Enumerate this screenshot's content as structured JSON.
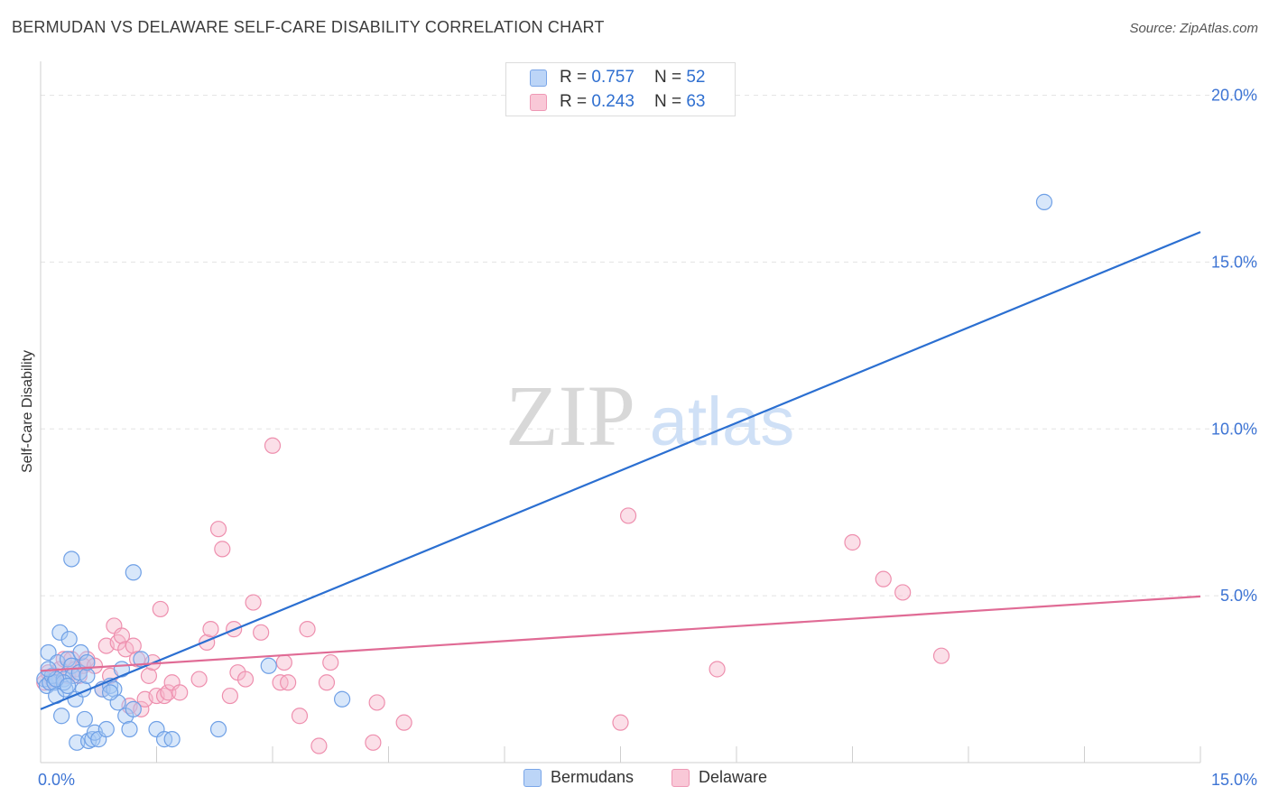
{
  "title": "BERMUDAN VS DELAWARE SELF-CARE DISABILITY CORRELATION CHART",
  "source": "Source: ZipAtlas.com",
  "watermark": {
    "zip": "ZIP",
    "atlas": "atlas"
  },
  "legend_stats": [
    {
      "r_label": "R =",
      "r_value": "0.757",
      "n_label": "N =",
      "n_value": "52"
    },
    {
      "r_label": "R =",
      "r_value": "0.243",
      "n_label": "N =",
      "n_value": "63"
    }
  ],
  "colors": {
    "blue_fill": "#a9c9f5",
    "blue_stroke": "#6fa0e6",
    "blue_line": "#2b6fd1",
    "pink_fill": "#f6b9cc",
    "pink_stroke": "#ee8fae",
    "pink_line": "#e06b95",
    "tick_text": "#3d74d4",
    "grid": "#e3e3e3"
  },
  "chart_data": {
    "type": "scatter",
    "title": "BERMUDAN VS DELAWARE SELF-CARE DISABILITY CORRELATION CHART",
    "xlabel": "",
    "ylabel": "Self-Care Disability",
    "xlim": [
      0,
      15
    ],
    "ylim": [
      0,
      20.8
    ],
    "x_tick_labels": [
      {
        "value": 0,
        "label": "0.0%"
      },
      {
        "value": 15,
        "label": "15.0%"
      }
    ],
    "y_tick_labels": [
      {
        "value": 5,
        "label": "5.0%"
      },
      {
        "value": 10,
        "label": "10.0%"
      },
      {
        "value": 15,
        "label": "15.0%"
      },
      {
        "value": 20,
        "label": "20.0%"
      }
    ],
    "legend": [
      "Bermudans",
      "Delaware"
    ],
    "series": [
      {
        "name": "Bermudans",
        "color": "#a9c9f5",
        "R": 0.757,
        "N": 52,
        "trend": {
          "x": [
            0,
            15
          ],
          "y": [
            1.6,
            15.9
          ]
        },
        "points": [
          [
            0.05,
            2.5
          ],
          [
            0.08,
            2.3
          ],
          [
            0.1,
            3.3
          ],
          [
            0.12,
            2.4
          ],
          [
            0.15,
            2.6
          ],
          [
            0.18,
            2.4
          ],
          [
            0.2,
            2.0
          ],
          [
            0.22,
            3.0
          ],
          [
            0.25,
            3.9
          ],
          [
            0.27,
            1.4
          ],
          [
            0.3,
            2.5
          ],
          [
            0.32,
            2.2
          ],
          [
            0.35,
            3.1
          ],
          [
            0.37,
            3.7
          ],
          [
            0.4,
            2.9
          ],
          [
            0.42,
            2.6
          ],
          [
            0.45,
            1.9
          ],
          [
            0.47,
            0.6
          ],
          [
            0.5,
            2.7
          ],
          [
            0.52,
            3.3
          ],
          [
            0.55,
            2.2
          ],
          [
            0.57,
            1.3
          ],
          [
            0.6,
            2.6
          ],
          [
            0.62,
            0.65
          ],
          [
            0.67,
            0.7
          ],
          [
            0.7,
            0.9
          ],
          [
            0.75,
            0.7
          ],
          [
            0.8,
            2.2
          ],
          [
            0.85,
            1.0
          ],
          [
            0.9,
            2.3
          ],
          [
            0.95,
            2.2
          ],
          [
            1.0,
            1.8
          ],
          [
            1.05,
            2.8
          ],
          [
            1.1,
            1.4
          ],
          [
            1.15,
            1.0
          ],
          [
            1.2,
            1.6
          ],
          [
            1.3,
            3.1
          ],
          [
            1.5,
            1.0
          ],
          [
            1.6,
            0.7
          ],
          [
            1.7,
            0.7
          ],
          [
            2.3,
            1.0
          ],
          [
            2.95,
            2.9
          ],
          [
            3.9,
            1.9
          ],
          [
            0.4,
            6.1
          ],
          [
            1.2,
            5.7
          ],
          [
            12.98,
            16.8
          ],
          [
            0.3,
            2.4
          ],
          [
            0.6,
            3.0
          ],
          [
            0.2,
            2.5
          ],
          [
            0.35,
            2.3
          ],
          [
            0.1,
            2.8
          ],
          [
            0.9,
            2.1
          ]
        ]
      },
      {
        "name": "Delaware",
        "color": "#f6b9cc",
        "R": 0.243,
        "N": 63,
        "trend": {
          "x": [
            0,
            15
          ],
          "y": [
            2.75,
            4.98
          ]
        },
        "points": [
          [
            0.05,
            2.4
          ],
          [
            0.1,
            2.7
          ],
          [
            0.15,
            2.5
          ],
          [
            0.2,
            2.6
          ],
          [
            0.25,
            2.8
          ],
          [
            0.3,
            3.1
          ],
          [
            0.35,
            2.6
          ],
          [
            0.4,
            3.1
          ],
          [
            0.45,
            2.8
          ],
          [
            0.5,
            2.6
          ],
          [
            0.55,
            2.9
          ],
          [
            0.6,
            3.1
          ],
          [
            0.7,
            2.9
          ],
          [
            0.8,
            2.2
          ],
          [
            0.85,
            3.5
          ],
          [
            0.9,
            2.6
          ],
          [
            0.95,
            4.1
          ],
          [
            1.0,
            3.6
          ],
          [
            1.05,
            3.8
          ],
          [
            1.1,
            3.4
          ],
          [
            1.15,
            1.7
          ],
          [
            1.2,
            3.5
          ],
          [
            1.25,
            3.1
          ],
          [
            1.3,
            1.6
          ],
          [
            1.35,
            1.9
          ],
          [
            1.4,
            2.6
          ],
          [
            1.45,
            3.0
          ],
          [
            1.5,
            2.0
          ],
          [
            1.55,
            4.6
          ],
          [
            1.6,
            2.0
          ],
          [
            1.65,
            2.1
          ],
          [
            1.7,
            2.4
          ],
          [
            1.8,
            2.1
          ],
          [
            2.05,
            2.5
          ],
          [
            2.15,
            3.6
          ],
          [
            2.2,
            4.0
          ],
          [
            2.3,
            7.0
          ],
          [
            2.35,
            6.4
          ],
          [
            2.45,
            2.0
          ],
          [
            2.5,
            4.0
          ],
          [
            2.55,
            2.7
          ],
          [
            2.65,
            2.5
          ],
          [
            2.75,
            4.8
          ],
          [
            2.85,
            3.9
          ],
          [
            3.0,
            9.5
          ],
          [
            3.1,
            2.4
          ],
          [
            3.15,
            3.0
          ],
          [
            3.2,
            2.4
          ],
          [
            3.35,
            1.4
          ],
          [
            3.45,
            4.0
          ],
          [
            3.6,
            0.5
          ],
          [
            3.7,
            2.4
          ],
          [
            3.75,
            3.0
          ],
          [
            4.3,
            0.6
          ],
          [
            4.35,
            1.8
          ],
          [
            4.7,
            1.2
          ],
          [
            7.5,
            1.2
          ],
          [
            7.6,
            7.4
          ],
          [
            8.75,
            2.8
          ],
          [
            10.5,
            6.6
          ],
          [
            10.9,
            5.5
          ],
          [
            11.15,
            5.1
          ],
          [
            11.65,
            3.2
          ]
        ]
      }
    ]
  }
}
